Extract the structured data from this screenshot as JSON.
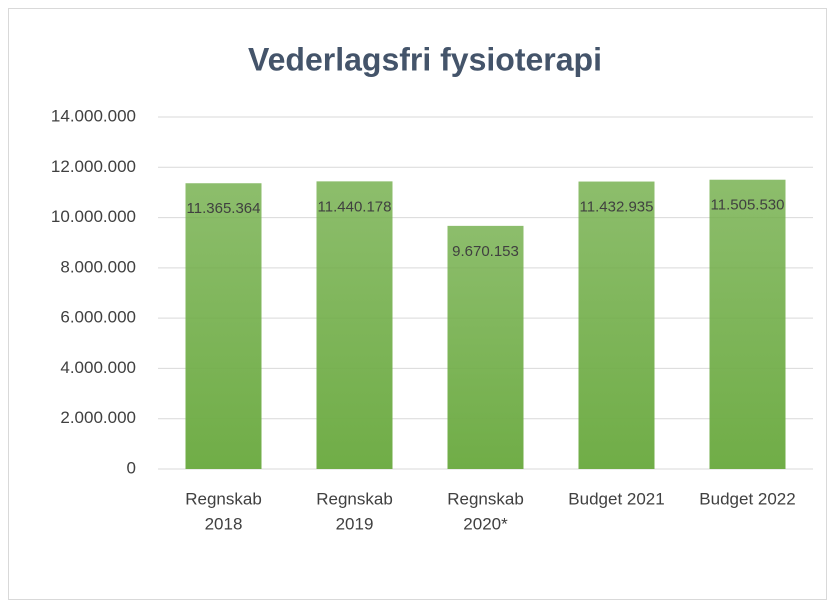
{
  "chart_data": {
    "type": "bar",
    "title": "Vederlagsfri fysioterapi",
    "categories": [
      [
        "Regnskab",
        "2018"
      ],
      [
        "Regnskab",
        "2019"
      ],
      [
        "Regnskab",
        "2020*"
      ],
      [
        "Budget 2021"
      ],
      [
        "Budget 2022"
      ]
    ],
    "values": [
      11365364,
      11440178,
      9670153,
      11432935,
      11505530
    ],
    "value_labels": [
      "11.365.364",
      "11.440.178",
      "9.670.153",
      "11.432.935",
      "11.505.530"
    ],
    "color": "#70ad47",
    "ylim": [
      0,
      14000000
    ],
    "yticks": [
      {
        "value": 0,
        "label": "0"
      },
      {
        "value": 2000000,
        "label": "2.000.000"
      },
      {
        "value": 4000000,
        "label": "4.000.000"
      },
      {
        "value": 6000000,
        "label": "6.000.000"
      },
      {
        "value": 8000000,
        "label": "8.000.000"
      },
      {
        "value": 10000000,
        "label": "10.000.000"
      },
      {
        "value": 12000000,
        "label": "12.000.000"
      },
      {
        "value": 14000000,
        "label": "14.000.000"
      }
    ],
    "grid": true
  }
}
